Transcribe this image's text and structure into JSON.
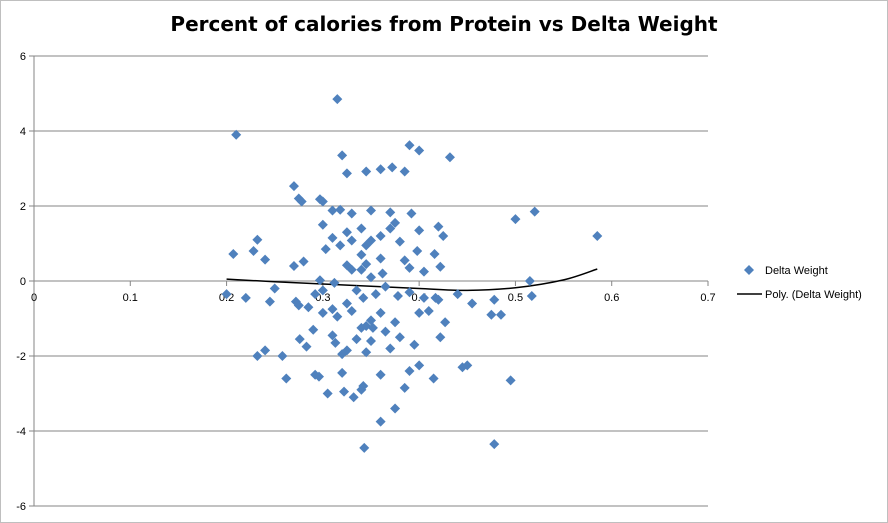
{
  "chart_data": {
    "type": "scatter",
    "title": "Percent of calories from Protein vs Delta Weight",
    "xlabel": "",
    "ylabel": "",
    "xlim": [
      0,
      0.7
    ],
    "ylim": [
      -6,
      6
    ],
    "x_ticks": [
      "0",
      "0.1",
      "0.2",
      "0.3",
      "0.4",
      "0.5",
      "0.6",
      "0.7"
    ],
    "y_ticks": [
      "-6",
      "-4",
      "-2",
      "0",
      "2",
      "4",
      "6"
    ],
    "grid": "horizontal",
    "legend_position": "right",
    "series": [
      {
        "name": "Delta Weight",
        "color": "#4f81bd",
        "marker": "diamond",
        "points": [
          [
            0.315,
            4.85
          ],
          [
            0.21,
            3.9
          ],
          [
            0.39,
            3.62
          ],
          [
            0.4,
            3.48
          ],
          [
            0.432,
            3.3
          ],
          [
            0.32,
            3.35
          ],
          [
            0.372,
            3.03
          ],
          [
            0.36,
            2.98
          ],
          [
            0.385,
            2.92
          ],
          [
            0.345,
            2.92
          ],
          [
            0.325,
            2.87
          ],
          [
            0.27,
            2.53
          ],
          [
            0.275,
            2.2
          ],
          [
            0.278,
            2.12
          ],
          [
            0.297,
            2.18
          ],
          [
            0.3,
            2.12
          ],
          [
            0.31,
            1.88
          ],
          [
            0.318,
            1.9
          ],
          [
            0.33,
            1.8
          ],
          [
            0.35,
            1.88
          ],
          [
            0.37,
            1.83
          ],
          [
            0.392,
            1.8
          ],
          [
            0.375,
            1.55
          ],
          [
            0.37,
            1.4
          ],
          [
            0.34,
            1.4
          ],
          [
            0.35,
            1.08
          ],
          [
            0.3,
            1.5
          ],
          [
            0.325,
            1.3
          ],
          [
            0.31,
            1.15
          ],
          [
            0.33,
            1.08
          ],
          [
            0.345,
            0.95
          ],
          [
            0.36,
            1.2
          ],
          [
            0.38,
            1.05
          ],
          [
            0.4,
            1.35
          ],
          [
            0.42,
            1.45
          ],
          [
            0.425,
            1.2
          ],
          [
            0.232,
            1.1
          ],
          [
            0.228,
            0.8
          ],
          [
            0.207,
            0.72
          ],
          [
            0.24,
            0.57
          ],
          [
            0.28,
            0.52
          ],
          [
            0.27,
            0.4
          ],
          [
            0.303,
            0.85
          ],
          [
            0.318,
            0.95
          ],
          [
            0.34,
            0.7
          ],
          [
            0.36,
            0.6
          ],
          [
            0.385,
            0.55
          ],
          [
            0.398,
            0.8
          ],
          [
            0.416,
            0.72
          ],
          [
            0.325,
            0.42
          ],
          [
            0.33,
            0.3
          ],
          [
            0.345,
            0.45
          ],
          [
            0.34,
            0.3
          ],
          [
            0.362,
            0.2
          ],
          [
            0.35,
            0.1
          ],
          [
            0.39,
            0.35
          ],
          [
            0.405,
            0.25
          ],
          [
            0.422,
            0.38
          ],
          [
            0.5,
            1.65
          ],
          [
            0.52,
            1.85
          ],
          [
            0.585,
            1.2
          ],
          [
            0.515,
            0.0
          ],
          [
            0.297,
            0.02
          ],
          [
            0.312,
            -0.05
          ],
          [
            0.3,
            -0.25
          ],
          [
            0.292,
            -0.35
          ],
          [
            0.335,
            -0.25
          ],
          [
            0.342,
            -0.45
          ],
          [
            0.355,
            -0.35
          ],
          [
            0.365,
            -0.15
          ],
          [
            0.378,
            -0.4
          ],
          [
            0.39,
            -0.3
          ],
          [
            0.405,
            -0.45
          ],
          [
            0.417,
            -0.45
          ],
          [
            0.42,
            -0.5
          ],
          [
            0.22,
            -0.45
          ],
          [
            0.2,
            -0.35
          ],
          [
            0.245,
            -0.55
          ],
          [
            0.25,
            -0.2
          ],
          [
            0.272,
            -0.55
          ],
          [
            0.275,
            -0.65
          ],
          [
            0.285,
            -0.7
          ],
          [
            0.3,
            -0.85
          ],
          [
            0.31,
            -0.75
          ],
          [
            0.315,
            -0.95
          ],
          [
            0.325,
            -0.6
          ],
          [
            0.33,
            -0.8
          ],
          [
            0.35,
            -1.05
          ],
          [
            0.36,
            -0.85
          ],
          [
            0.375,
            -1.1
          ],
          [
            0.4,
            -0.85
          ],
          [
            0.41,
            -0.8
          ],
          [
            0.427,
            -1.1
          ],
          [
            0.44,
            -0.35
          ],
          [
            0.455,
            -0.6
          ],
          [
            0.475,
            -0.9
          ],
          [
            0.485,
            -0.9
          ],
          [
            0.478,
            -0.5
          ],
          [
            0.517,
            -0.4
          ],
          [
            0.29,
            -1.3
          ],
          [
            0.276,
            -1.55
          ],
          [
            0.283,
            -1.75
          ],
          [
            0.31,
            -1.45
          ],
          [
            0.313,
            -1.65
          ],
          [
            0.34,
            -1.25
          ],
          [
            0.345,
            -1.2
          ],
          [
            0.352,
            -1.25
          ],
          [
            0.365,
            -1.35
          ],
          [
            0.38,
            -1.5
          ],
          [
            0.335,
            -1.55
          ],
          [
            0.35,
            -1.6
          ],
          [
            0.325,
            -1.85
          ],
          [
            0.32,
            -1.95
          ],
          [
            0.345,
            -1.9
          ],
          [
            0.37,
            -1.8
          ],
          [
            0.395,
            -1.7
          ],
          [
            0.422,
            -1.5
          ],
          [
            0.232,
            -2.0
          ],
          [
            0.24,
            -1.85
          ],
          [
            0.258,
            -2.0
          ],
          [
            0.262,
            -2.6
          ],
          [
            0.292,
            -2.5
          ],
          [
            0.296,
            -2.55
          ],
          [
            0.32,
            -2.45
          ],
          [
            0.342,
            -2.8
          ],
          [
            0.34,
            -2.9
          ],
          [
            0.36,
            -2.5
          ],
          [
            0.39,
            -2.4
          ],
          [
            0.4,
            -2.25
          ],
          [
            0.385,
            -2.85
          ],
          [
            0.415,
            -2.6
          ],
          [
            0.445,
            -2.3
          ],
          [
            0.45,
            -2.25
          ],
          [
            0.495,
            -2.65
          ],
          [
            0.305,
            -3.0
          ],
          [
            0.322,
            -2.95
          ],
          [
            0.332,
            -3.1
          ],
          [
            0.375,
            -3.4
          ],
          [
            0.36,
            -3.75
          ],
          [
            0.343,
            -4.45
          ],
          [
            0.478,
            -4.35
          ]
        ]
      },
      {
        "name": "Poly. (Delta Weight)",
        "color": "#000000",
        "type": "trendline",
        "points": [
          [
            0.2,
            0.05
          ],
          [
            0.25,
            -0.02
          ],
          [
            0.3,
            -0.08
          ],
          [
            0.35,
            -0.14
          ],
          [
            0.4,
            -0.2
          ],
          [
            0.45,
            -0.25
          ],
          [
            0.5,
            -0.18
          ],
          [
            0.55,
            0.03
          ],
          [
            0.585,
            0.32
          ]
        ]
      }
    ]
  }
}
